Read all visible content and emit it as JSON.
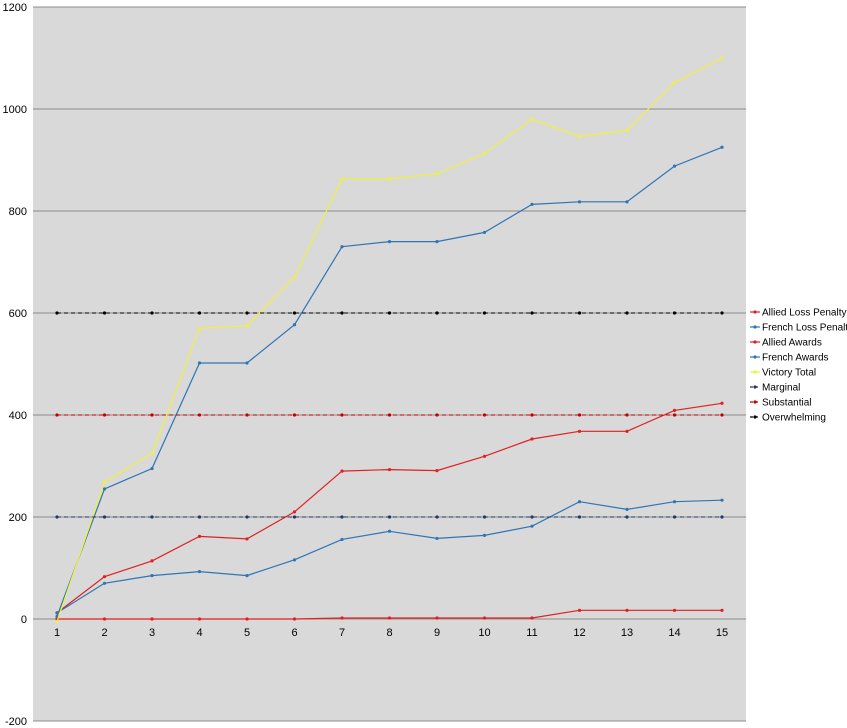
{
  "chart_data": {
    "type": "line",
    "title": "",
    "xlabel": "",
    "ylabel": "",
    "categories": [
      "1",
      "2",
      "3",
      "4",
      "5",
      "6",
      "7",
      "8",
      "9",
      "10",
      "11",
      "12",
      "13",
      "14",
      "15"
    ],
    "ylim": [
      -200,
      1200
    ],
    "yticks": [
      -200,
      0,
      200,
      400,
      600,
      800,
      1000,
      1200
    ],
    "grid": true,
    "legend_position": "right",
    "plot_background": "#d9d9d9",
    "series": [
      {
        "name": "Allied Loss Penalty",
        "color": "#e02020",
        "dashed": false,
        "values": [
          0,
          0,
          0,
          0,
          0,
          0,
          2,
          2,
          2,
          2,
          2,
          17,
          17,
          17,
          17
        ]
      },
      {
        "name": "French Loss Penalty",
        "color": "#2e75b6",
        "dashed": false,
        "values": [
          5,
          255,
          295,
          502,
          502,
          577,
          730,
          740,
          740,
          758,
          813,
          818,
          818,
          888,
          925
        ]
      },
      {
        "name": "Allied Awards",
        "color": "#e02020",
        "dashed": false,
        "values": [
          12,
          83,
          114,
          162,
          157,
          210,
          290,
          293,
          291,
          319,
          353,
          368,
          368,
          409,
          423
        ]
      },
      {
        "name": "French Awards",
        "color": "#2e75b6",
        "dashed": false,
        "values": [
          12,
          70,
          85,
          93,
          85,
          116,
          156,
          172,
          158,
          164,
          182,
          230,
          215,
          230,
          233
        ]
      },
      {
        "name": "Victory Total",
        "color": "#f0f040",
        "dashed": false,
        "values": [
          -5,
          268,
          325,
          570,
          575,
          670,
          863,
          863,
          873,
          913,
          980,
          946,
          958,
          1052,
          1100
        ]
      },
      {
        "name": "Marginal",
        "color": "#203864",
        "dashed": true,
        "values": [
          200,
          200,
          200,
          200,
          200,
          200,
          200,
          200,
          200,
          200,
          200,
          200,
          200,
          200,
          200
        ]
      },
      {
        "name": "Substantial",
        "color": "#c00000",
        "dashed": true,
        "values": [
          400,
          400,
          400,
          400,
          400,
          400,
          400,
          400,
          400,
          400,
          400,
          400,
          400,
          400,
          400
        ]
      },
      {
        "name": "Overwhelming",
        "color": "#000000",
        "dashed": true,
        "values": [
          600,
          600,
          600,
          600,
          600,
          600,
          600,
          600,
          600,
          600,
          600,
          600,
          600,
          600,
          600
        ]
      }
    ]
  }
}
